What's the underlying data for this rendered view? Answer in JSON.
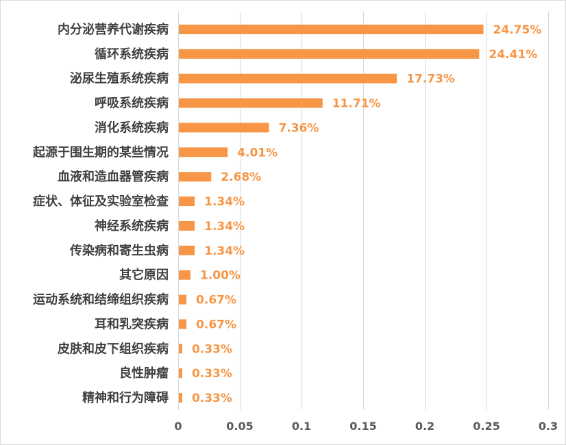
{
  "chart_data": {
    "type": "bar",
    "orientation": "horizontal",
    "categories": [
      "内分泌营养代谢疾病",
      "循环系统疾病",
      "泌尿生殖系统疾病",
      "呼吸系统疾病",
      "消化系统疾病",
      "起源于围生期的某些情况",
      "血液和造血器管疾病",
      "症状、体征及实验室检查",
      "神经系统疾病",
      "传染病和寄生虫病",
      "其它原因",
      "运动系统和结缔组织疾病",
      "耳和乳突疾病",
      "皮肤和皮下组织疾病",
      "良性肿瘤",
      "精神和行为障碍"
    ],
    "values": [
      0.2475,
      0.2441,
      0.1773,
      0.1171,
      0.0736,
      0.0401,
      0.0268,
      0.0134,
      0.0134,
      0.0134,
      0.01,
      0.0067,
      0.0067,
      0.0033,
      0.0033,
      0.0033
    ],
    "data_labels": [
      "24.75%",
      "24.41%",
      "17.73%",
      "11.71%",
      "7.36%",
      "4.01%",
      "2.68%",
      "1.34%",
      "1.34%",
      "1.34%",
      "1.00%",
      "0.67%",
      "0.67%",
      "0.33%",
      "0.33%",
      "0.33%"
    ],
    "xlim": [
      0,
      0.3
    ],
    "x_ticks": [
      "0",
      "0.05",
      "0.1",
      "0.15",
      "0.2",
      "0.25",
      "0.3"
    ],
    "x_tick_values": [
      0,
      0.05,
      0.1,
      0.15,
      0.2,
      0.25,
      0.3
    ],
    "grid": "vertical",
    "legend": "none",
    "bar_color": "#F79646",
    "label_color": "#F79646",
    "grid_color": "#D9D9D9"
  }
}
